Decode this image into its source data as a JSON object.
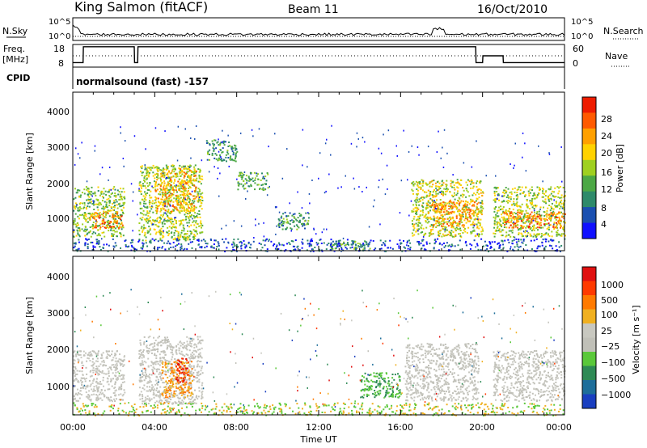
{
  "header": {
    "station": "King Salmon (fitACF)",
    "beam": "Beam 11",
    "date": "16/Oct/2010"
  },
  "labels": {
    "nsky": "N.Sky",
    "freq_line1": "Freq.",
    "freq_line2": "[MHz]",
    "cpid": "CPID",
    "nsearch": "N.Search",
    "nave": "Nave",
    "mode": "normalsound (fast) -157"
  },
  "chart_data": [
    {
      "type": "line",
      "name": "noise",
      "yticks_left": [
        "10^5",
        "10^0"
      ],
      "yticks_right": [
        "10^5",
        "10^0"
      ],
      "series": [
        {
          "name": "N.Sky",
          "style": "solid"
        },
        {
          "name": "N.Search",
          "style": "dotted"
        }
      ]
    },
    {
      "type": "line",
      "name": "frequency-nave",
      "yticks_left": [
        "18",
        "8"
      ],
      "yticks_right": [
        "60",
        "0"
      ],
      "series": [
        {
          "name": "Freq. [MHz]",
          "style": "solid",
          "x": [
            "00:00",
            "00:30",
            "00:31",
            "03:00",
            "03:01",
            "03:10",
            "03:11",
            "19:40",
            "19:41",
            "20:00",
            "20:01",
            "20:30",
            "20:31",
            "21:00",
            "21:01",
            "24:00"
          ],
          "y": [
            10,
            10,
            17,
            17,
            10,
            10,
            17,
            17,
            10,
            10,
            13,
            13,
            13,
            13,
            10,
            10
          ]
        },
        {
          "name": "Nave",
          "style": "dotted"
        }
      ]
    },
    {
      "type": "heatmap",
      "name": "power",
      "ylabel": "Slant Range [km]",
      "yticks": [
        "1000",
        "2000",
        "3000",
        "4000"
      ],
      "ylim": [
        200,
        4600
      ],
      "colorbar": {
        "label": "Power [dB]",
        "ticks": [
          "4",
          "8",
          "12",
          "16",
          "20",
          "24",
          "28"
        ],
        "colors": [
          "#1010ff",
          "#1a4fb0",
          "#2e8a6a",
          "#4ca845",
          "#9fd020",
          "#ffd200",
          "#ffa000",
          "#ff5a00",
          "#ee1c00"
        ]
      },
      "regions": [
        {
          "t": [
            0.0,
            2.5
          ],
          "r": [
            600,
            2000
          ],
          "level": 0.45
        },
        {
          "t": [
            0.8,
            2.4
          ],
          "r": [
            850,
            1300
          ],
          "level": 0.8
        },
        {
          "t": [
            3.2,
            6.3
          ],
          "r": [
            500,
            2600
          ],
          "level": 0.5
        },
        {
          "t": [
            4.0,
            6.0
          ],
          "r": [
            1300,
            2500
          ],
          "level": 0.7
        },
        {
          "t": [
            6.5,
            8.0
          ],
          "r": [
            2700,
            3300
          ],
          "level": 0.3
        },
        {
          "t": [
            8.0,
            9.5
          ],
          "r": [
            1900,
            2400
          ],
          "level": 0.35
        },
        {
          "t": [
            10.0,
            11.5
          ],
          "r": [
            800,
            1300
          ],
          "level": 0.3
        },
        {
          "t": [
            12.5,
            14.5
          ],
          "r": [
            250,
            500
          ],
          "level": 0.35
        },
        {
          "t": [
            16.5,
            20.0
          ],
          "r": [
            600,
            2200
          ],
          "level": 0.55
        },
        {
          "t": [
            17.5,
            19.8
          ],
          "r": [
            900,
            1600
          ],
          "level": 0.75
        },
        {
          "t": [
            20.5,
            24.0
          ],
          "r": [
            600,
            2000
          ],
          "level": 0.5
        },
        {
          "t": [
            21.0,
            24.0
          ],
          "r": [
            850,
            1300
          ],
          "level": 0.8
        }
      ]
    },
    {
      "type": "heatmap",
      "name": "velocity",
      "ylabel": "Slant Range [km]",
      "yticks": [
        "1000",
        "2000",
        "3000",
        "4000"
      ],
      "ylim": [
        200,
        4600
      ],
      "xlabel": "Time UT",
      "xticks": [
        "00:00",
        "04:00",
        "08:00",
        "12:00",
        "16:00",
        "20:00",
        "00:00"
      ],
      "colorbar": {
        "label": "Velocity [m s⁻¹]",
        "ticks": [
          "1000",
          "500",
          "100",
          "25",
          "−25",
          "−100",
          "−500",
          "−1000"
        ],
        "colors": [
          "#1a3fc0",
          "#1e6e9a",
          "#2e8a55",
          "#5ac83a",
          "#c0c0b8",
          "#c8c8c0",
          "#f0b020",
          "#ff7a00",
          "#ff3a00",
          "#e01010"
        ]
      },
      "regions": [
        {
          "t": [
            0.0,
            2.5
          ],
          "r": [
            600,
            2000
          ],
          "kind": "gray"
        },
        {
          "t": [
            3.2,
            6.3
          ],
          "r": [
            500,
            2400
          ],
          "kind": "gray"
        },
        {
          "t": [
            4.3,
            5.8
          ],
          "r": [
            700,
            1700
          ],
          "kind": "orange"
        },
        {
          "t": [
            5.0,
            5.6
          ],
          "r": [
            1100,
            1800
          ],
          "kind": "red"
        },
        {
          "t": [
            14.0,
            16.0
          ],
          "r": [
            700,
            1400
          ],
          "kind": "green"
        },
        {
          "t": [
            16.2,
            19.8
          ],
          "r": [
            600,
            2200
          ],
          "kind": "gray"
        },
        {
          "t": [
            20.5,
            24.0
          ],
          "r": [
            600,
            2000
          ],
          "kind": "gray"
        }
      ]
    }
  ]
}
